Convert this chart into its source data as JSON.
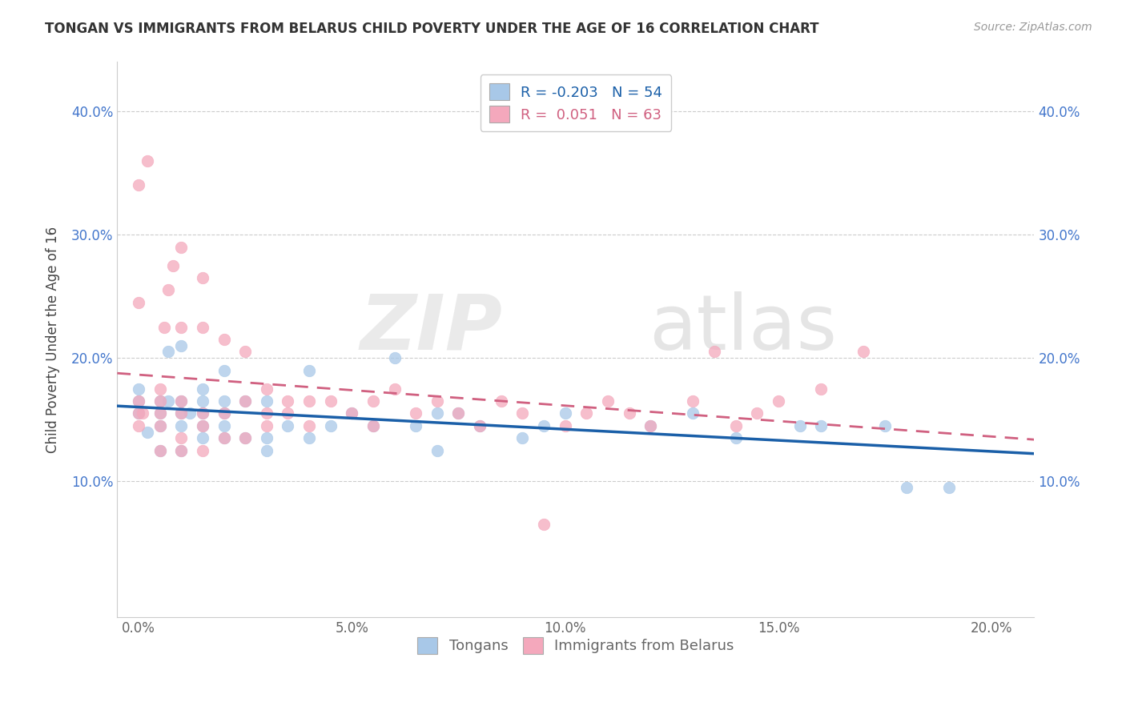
{
  "title": "TONGAN VS IMMIGRANTS FROM BELARUS CHILD POVERTY UNDER THE AGE OF 16 CORRELATION CHART",
  "source": "Source: ZipAtlas.com",
  "ylabel": "Child Poverty Under the Age of 16",
  "xticklabels": [
    "0.0%",
    "5.0%",
    "10.0%",
    "15.0%",
    "20.0%"
  ],
  "xticks": [
    0.0,
    0.05,
    0.1,
    0.15,
    0.2
  ],
  "yticklabels": [
    "10.0%",
    "20.0%",
    "30.0%",
    "40.0%"
  ],
  "yticks": [
    0.1,
    0.2,
    0.3,
    0.4
  ],
  "xlim": [
    -0.005,
    0.21
  ],
  "ylim": [
    -0.01,
    0.44
  ],
  "legend_labels": [
    "Tongans",
    "Immigrants from Belarus"
  ],
  "blue_color": "#a8c8e8",
  "pink_color": "#f4a8bc",
  "blue_line_color": "#1a5fa8",
  "pink_line_color": "#d06080",
  "R_blue": -0.203,
  "N_blue": 54,
  "R_pink": 0.051,
  "N_pink": 63,
  "blue_scatter_x": [
    0.0,
    0.0,
    0.0,
    0.002,
    0.005,
    0.005,
    0.005,
    0.005,
    0.007,
    0.007,
    0.01,
    0.01,
    0.01,
    0.01,
    0.01,
    0.012,
    0.015,
    0.015,
    0.015,
    0.015,
    0.015,
    0.02,
    0.02,
    0.02,
    0.02,
    0.02,
    0.025,
    0.025,
    0.03,
    0.03,
    0.03,
    0.035,
    0.04,
    0.04,
    0.045,
    0.05,
    0.055,
    0.06,
    0.065,
    0.07,
    0.07,
    0.075,
    0.08,
    0.09,
    0.095,
    0.1,
    0.12,
    0.13,
    0.14,
    0.155,
    0.16,
    0.175,
    0.18,
    0.19
  ],
  "blue_scatter_y": [
    0.155,
    0.165,
    0.175,
    0.14,
    0.125,
    0.145,
    0.155,
    0.165,
    0.165,
    0.205,
    0.125,
    0.145,
    0.155,
    0.165,
    0.21,
    0.155,
    0.135,
    0.145,
    0.155,
    0.165,
    0.175,
    0.135,
    0.145,
    0.155,
    0.165,
    0.19,
    0.135,
    0.165,
    0.125,
    0.135,
    0.165,
    0.145,
    0.135,
    0.19,
    0.145,
    0.155,
    0.145,
    0.2,
    0.145,
    0.125,
    0.155,
    0.155,
    0.145,
    0.135,
    0.145,
    0.155,
    0.145,
    0.155,
    0.135,
    0.145,
    0.145,
    0.145,
    0.095,
    0.095
  ],
  "pink_scatter_x": [
    0.0,
    0.0,
    0.0,
    0.0,
    0.0,
    0.001,
    0.002,
    0.005,
    0.005,
    0.005,
    0.005,
    0.005,
    0.006,
    0.007,
    0.008,
    0.01,
    0.01,
    0.01,
    0.01,
    0.01,
    0.01,
    0.015,
    0.015,
    0.015,
    0.015,
    0.015,
    0.02,
    0.02,
    0.02,
    0.025,
    0.025,
    0.025,
    0.03,
    0.03,
    0.03,
    0.035,
    0.035,
    0.04,
    0.04,
    0.045,
    0.05,
    0.055,
    0.055,
    0.06,
    0.065,
    0.07,
    0.075,
    0.08,
    0.085,
    0.09,
    0.095,
    0.1,
    0.105,
    0.11,
    0.115,
    0.12,
    0.13,
    0.135,
    0.14,
    0.145,
    0.15,
    0.16,
    0.17
  ],
  "pink_scatter_y": [
    0.145,
    0.155,
    0.165,
    0.245,
    0.34,
    0.155,
    0.36,
    0.125,
    0.145,
    0.155,
    0.165,
    0.175,
    0.225,
    0.255,
    0.275,
    0.125,
    0.135,
    0.155,
    0.165,
    0.225,
    0.29,
    0.125,
    0.145,
    0.155,
    0.225,
    0.265,
    0.135,
    0.155,
    0.215,
    0.135,
    0.165,
    0.205,
    0.145,
    0.155,
    0.175,
    0.155,
    0.165,
    0.145,
    0.165,
    0.165,
    0.155,
    0.145,
    0.165,
    0.175,
    0.155,
    0.165,
    0.155,
    0.145,
    0.165,
    0.155,
    0.065,
    0.145,
    0.155,
    0.165,
    0.155,
    0.145,
    0.165,
    0.205,
    0.145,
    0.155,
    0.165,
    0.175,
    0.205
  ]
}
